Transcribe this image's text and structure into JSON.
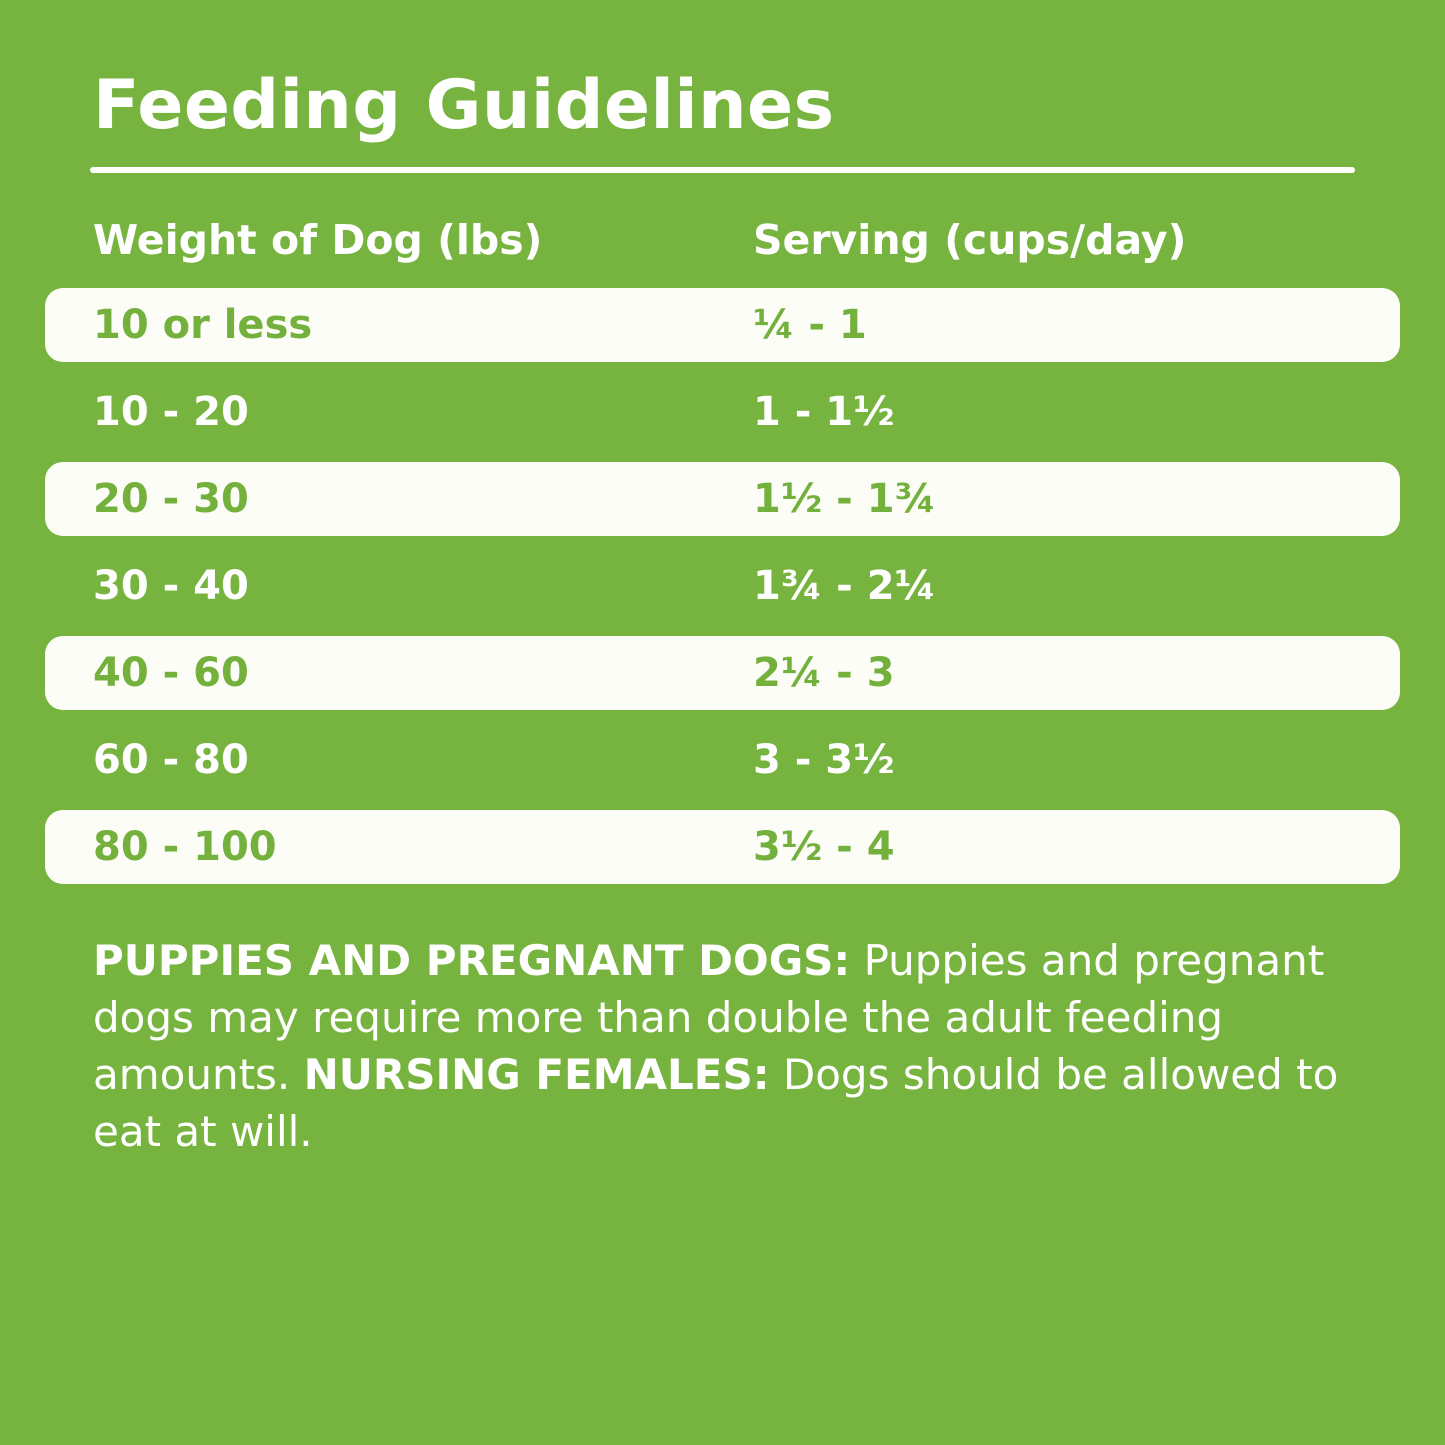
{
  "colors": {
    "background_green": "#77b43f",
    "pill_white": "#fdfdf8",
    "pill_text_green": "#74b03c",
    "text_white": "#ffffff"
  },
  "title": "Feeding Guidelines",
  "table": {
    "headers": {
      "weight": "Weight of Dog (lbs)",
      "serving": "Serving (cups/day)"
    },
    "rows": [
      {
        "weight": "10 or less",
        "serving": "¼ - 1",
        "highlight": true
      },
      {
        "weight": "10 - 20",
        "serving": "1 - 1½",
        "highlight": false
      },
      {
        "weight": "20 - 30",
        "serving": "1½ - 1¾",
        "highlight": true
      },
      {
        "weight": "30 - 40",
        "serving": "1¾ - 2¼",
        "highlight": false
      },
      {
        "weight": "40 - 60",
        "serving": "2¼ - 3",
        "highlight": true
      },
      {
        "weight": "60 - 80",
        "serving": "3 - 3½",
        "highlight": false
      },
      {
        "weight": "80 - 100",
        "serving": "3½ - 4",
        "highlight": true
      }
    ]
  },
  "footer": {
    "bold1": "PUPPIES AND PREGNANT DOGS:",
    "text1": " Puppies and pregnant dogs may require more than double the adult feeding amounts. ",
    "bold2": "NURSING FEMALES:",
    "text2": " Dogs should be allowed to eat at will."
  },
  "chart_data": {
    "type": "table",
    "title": "Feeding Guidelines",
    "columns": [
      "Weight of Dog (lbs)",
      "Serving (cups/day)"
    ],
    "rows": [
      [
        "10 or less",
        "¼ - 1"
      ],
      [
        "10 - 20",
        "1 - 1½"
      ],
      [
        "20 - 30",
        "1½ - 1¾"
      ],
      [
        "30 - 40",
        "1¾ - 2¼"
      ],
      [
        "40 - 60",
        "2¼ - 3"
      ],
      [
        "60 - 80",
        "3 - 3½"
      ],
      [
        "80 - 100",
        "3½ - 4"
      ]
    ],
    "note": "PUPPIES AND PREGNANT DOGS: Puppies and pregnant dogs may require more than double the adult feeding amounts. NURSING FEMALES: Dogs should be allowed to eat at will."
  }
}
